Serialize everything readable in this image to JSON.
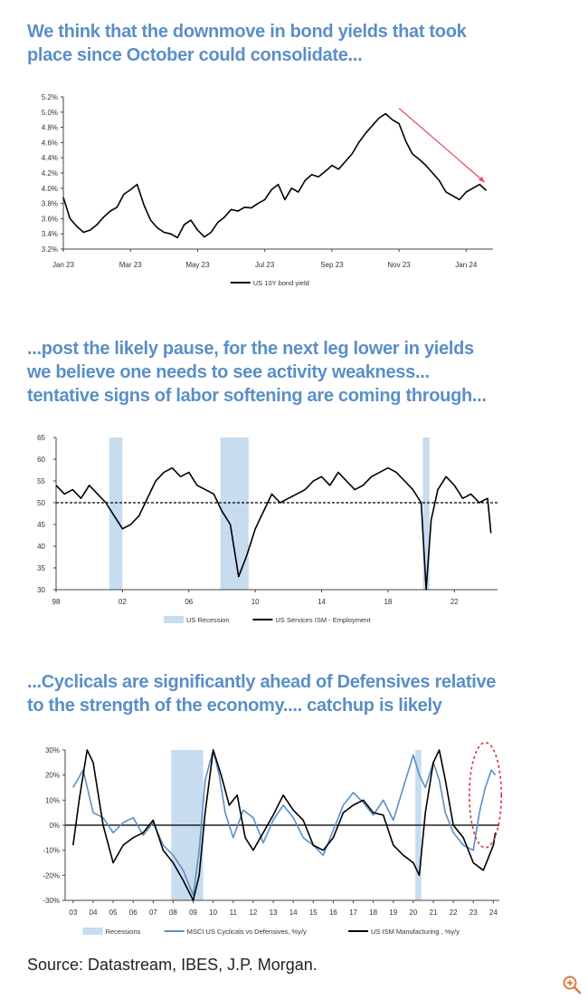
{
  "headings": [
    [
      "We think that the downmove in bond yields that took",
      "place since October could consolidate..."
    ],
    [
      "...post the likely pause, for the next leg lower in yields",
      "we believe one needs to see activity weakness...",
      "tentative signs of labor softening are coming through..."
    ],
    [
      "...Cyclicals are significantly ahead of Defensives relative",
      "to the strength of the economy.... catchup is likely"
    ]
  ],
  "source": "Source: Datastream, IBES, J.P. Morgan.",
  "chart_data": [
    {
      "type": "line",
      "title": "",
      "ylim": [
        3.2,
        5.2
      ],
      "y_ticks": [
        "3.2%",
        "3.4%",
        "3.6%",
        "3.8%",
        "4.0%",
        "4.2%",
        "4.4%",
        "4.6%",
        "4.8%",
        "5.0%",
        "5.2%"
      ],
      "x_ticks": [
        "Jan 23",
        "Mar 23",
        "May 23",
        "Jul 23",
        "Sep 23",
        "Nov 23",
        "Jan 24"
      ],
      "x_tick_pos": [
        0,
        2,
        4,
        6,
        8,
        10,
        12
      ],
      "xlim": [
        0,
        12.8
      ],
      "series": [
        {
          "name": "US 10Y bond yield",
          "color": "#000000",
          "x": [
            0,
            0.2,
            0.4,
            0.6,
            0.8,
            1.0,
            1.2,
            1.4,
            1.6,
            1.8,
            2.0,
            2.2,
            2.4,
            2.6,
            2.8,
            3.0,
            3.2,
            3.4,
            3.6,
            3.8,
            4.0,
            4.2,
            4.4,
            4.6,
            4.8,
            5.0,
            5.2,
            5.4,
            5.6,
            5.8,
            6.0,
            6.2,
            6.4,
            6.6,
            6.8,
            7.0,
            7.2,
            7.4,
            7.6,
            7.8,
            8.0,
            8.2,
            8.4,
            8.6,
            8.8,
            9.0,
            9.2,
            9.4,
            9.6,
            9.8,
            10.0,
            10.2,
            10.4,
            10.6,
            10.8,
            11.0,
            11.2,
            11.4,
            11.6,
            11.8,
            12.0,
            12.2,
            12.4,
            12.6
          ],
          "values": [
            3.88,
            3.6,
            3.5,
            3.42,
            3.45,
            3.52,
            3.62,
            3.7,
            3.75,
            3.92,
            3.98,
            4.05,
            3.78,
            3.58,
            3.48,
            3.42,
            3.4,
            3.35,
            3.52,
            3.58,
            3.45,
            3.36,
            3.42,
            3.55,
            3.62,
            3.72,
            3.7,
            3.75,
            3.74,
            3.8,
            3.85,
            3.98,
            4.05,
            3.85,
            4.0,
            3.95,
            4.1,
            4.18,
            4.15,
            4.22,
            4.3,
            4.25,
            4.35,
            4.45,
            4.6,
            4.72,
            4.82,
            4.92,
            4.98,
            4.9,
            4.85,
            4.62,
            4.45,
            4.38,
            4.3,
            4.2,
            4.1,
            3.95,
            3.9,
            3.85,
            3.95,
            4.0,
            4.05,
            3.97
          ]
        }
      ],
      "trend_arrow": {
        "color": "#e8505b",
        "from": [
          10.0,
          5.05
        ],
        "to": [
          12.55,
          4.08
        ]
      }
    },
    {
      "type": "line",
      "title": "",
      "ylim": [
        30,
        65
      ],
      "y_ticks": [
        "30",
        "35",
        "40",
        "45",
        "50",
        "55",
        "60",
        "65"
      ],
      "x_ticks": [
        "98",
        "02",
        "06",
        "10",
        "14",
        "18",
        "22"
      ],
      "x_tick_pos": [
        1998,
        2002,
        2006,
        2010,
        2014,
        2018,
        2022
      ],
      "xlim": [
        1998,
        2024.6
      ],
      "reference_line": 50,
      "recessions": [
        [
          2001.2,
          2002.0
        ],
        [
          2007.9,
          2009.6
        ],
        [
          2020.1,
          2020.5
        ]
      ],
      "series": [
        {
          "name": "US Recession",
          "color": "#c7dcef"
        },
        {
          "name": "US Services ISM - Employment",
          "color": "#000000",
          "x": [
            1998.0,
            1998.5,
            1999.0,
            1999.5,
            2000.0,
            2000.5,
            2001.0,
            2001.5,
            2002.0,
            2002.5,
            2003.0,
            2003.5,
            2004.0,
            2004.5,
            2005.0,
            2005.5,
            2006.0,
            2006.5,
            2007.0,
            2007.5,
            2008.0,
            2008.5,
            2009.0,
            2009.5,
            2010.0,
            2010.5,
            2011.0,
            2011.5,
            2012.0,
            2012.5,
            2013.0,
            2013.5,
            2014.0,
            2014.5,
            2015.0,
            2015.5,
            2016.0,
            2016.5,
            2017.0,
            2017.5,
            2018.0,
            2018.5,
            2019.0,
            2019.5,
            2020.0,
            2020.3,
            2020.6,
            2021.0,
            2021.5,
            2022.0,
            2022.5,
            2023.0,
            2023.5,
            2024.0,
            2024.2
          ],
          "values": [
            54,
            52,
            53,
            51,
            54,
            52,
            50,
            47,
            44,
            45,
            47,
            51,
            55,
            57,
            58,
            56,
            57,
            54,
            53,
            52,
            48,
            45,
            33,
            38,
            44,
            48,
            52,
            50,
            51,
            52,
            53,
            55,
            56,
            54,
            57,
            55,
            53,
            54,
            56,
            57,
            58,
            57,
            55,
            53,
            50,
            30,
            46,
            53,
            56,
            54,
            51,
            52,
            50,
            51,
            43
          ]
        }
      ]
    },
    {
      "type": "line",
      "title": "",
      "ylim": [
        -30,
        30
      ],
      "y_ticks": [
        "-30%",
        "-20%",
        "-10%",
        "0%",
        "10%",
        "20%",
        "30%"
      ],
      "x_ticks": [
        "03",
        "04",
        "05",
        "06",
        "07",
        "08",
        "09",
        "10",
        "11",
        "12",
        "13",
        "14",
        "15",
        "16",
        "17",
        "18",
        "19",
        "20",
        "21",
        "22",
        "23",
        "24"
      ],
      "x_tick_pos": [
        2003,
        2004,
        2005,
        2006,
        2007,
        2008,
        2009,
        2010,
        2011,
        2012,
        2013,
        2014,
        2015,
        2016,
        2017,
        2018,
        2019,
        2020,
        2021,
        2022,
        2023,
        2024
      ],
      "xlim": [
        2002.6,
        2024.3
      ],
      "recessions": [
        [
          2007.9,
          2009.5
        ],
        [
          2020.1,
          2020.4
        ]
      ],
      "highlight_ellipse": {
        "color": "#d9343a",
        "cx": 2023.6,
        "cy": 12,
        "rx": 0.8,
        "ry": 21
      },
      "series": [
        {
          "name": "Recessions",
          "color": "#c7dcef"
        },
        {
          "name": "MSCI US Cyclicals vs Defensives, %y/y",
          "color": "#5a8fc6",
          "x": [
            2003,
            2003.5,
            2004,
            2004.5,
            2005,
            2005.5,
            2006,
            2006.5,
            2007,
            2007.5,
            2008,
            2008.5,
            2009,
            2009.3,
            2009.6,
            2010,
            2010.3,
            2010.6,
            2011,
            2011.5,
            2012,
            2012.5,
            2013,
            2013.5,
            2014,
            2014.5,
            2015,
            2015.5,
            2016,
            2016.5,
            2017,
            2017.5,
            2018,
            2018.5,
            2019,
            2019.5,
            2020,
            2020.3,
            2020.6,
            2021,
            2021.3,
            2021.6,
            2022,
            2022.5,
            2023,
            2023.3,
            2023.6,
            2023.9,
            2024.1
          ],
          "values": [
            15,
            22,
            5,
            3,
            -3,
            1,
            3,
            -4,
            1,
            -8,
            -12,
            -18,
            -28,
            -10,
            18,
            30,
            20,
            5,
            -5,
            6,
            3,
            -7,
            2,
            8,
            3,
            -5,
            -8,
            -12,
            -2,
            8,
            13,
            9,
            4,
            10,
            2,
            15,
            28,
            20,
            15,
            25,
            18,
            5,
            -3,
            -8,
            -10,
            5,
            15,
            22,
            20
          ]
        },
        {
          "name": "US ISM Manufacturing , %y/y",
          "color": "#000000",
          "x": [
            2003,
            2003.3,
            2003.7,
            2004,
            2004.5,
            2005,
            2005.5,
            2006,
            2006.5,
            2007,
            2007.5,
            2008,
            2008.5,
            2009,
            2009.3,
            2009.6,
            2010,
            2010.4,
            2010.8,
            2011.2,
            2011.6,
            2012,
            2012.5,
            2013,
            2013.5,
            2014,
            2014.5,
            2015,
            2015.5,
            2016,
            2016.5,
            2017,
            2017.5,
            2018,
            2018.5,
            2019,
            2019.5,
            2020,
            2020.3,
            2020.6,
            2021,
            2021.3,
            2021.6,
            2022,
            2022.5,
            2023,
            2023.5,
            2024,
            2024.1
          ],
          "values": [
            -8,
            10,
            30,
            25,
            0,
            -15,
            -8,
            -5,
            -3,
            2,
            -10,
            -15,
            -22,
            -30,
            -20,
            5,
            30,
            20,
            8,
            12,
            -5,
            -10,
            -3,
            4,
            12,
            6,
            2,
            -8,
            -10,
            -5,
            5,
            8,
            10,
            5,
            4,
            -8,
            -12,
            -15,
            -20,
            5,
            25,
            30,
            18,
            0,
            -5,
            -15,
            -18,
            -8,
            -3
          ]
        }
      ]
    }
  ]
}
